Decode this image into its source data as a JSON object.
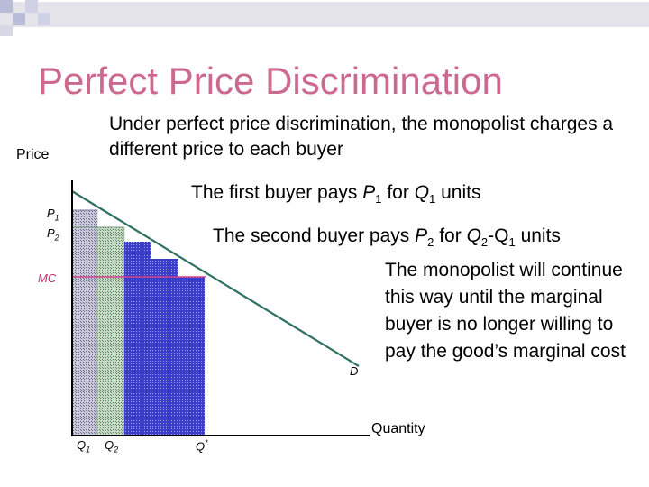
{
  "slide": {
    "title": "Perfect Price Discrimination",
    "subtitle": "Under perfect price discrimination, the monopolist charges a different price to each buyer",
    "annotation_1": {
      "prefix": "The first buyer pays ",
      "p": "P",
      "p_sub": "1",
      "mid": " for ",
      "q": "Q",
      "q_sub": "1",
      "suffix": " units"
    },
    "annotation_2": {
      "prefix": "The second buyer pays ",
      "p": "P",
      "p_sub": "2",
      "mid": " for ",
      "q2": "Q",
      "q2_sub": "2",
      "dash": "-",
      "q1": "Q",
      "q1_sub": "1",
      "suffix": " units"
    },
    "annotation_3": "The monopolist will continue this way until the marginal buyer is no longer willing to pay the good’s marginal cost"
  },
  "diagram": {
    "y_axis_label": "Price",
    "x_axis_label": "Quantity",
    "price_ticks": [
      {
        "main": "P",
        "sub": "1"
      },
      {
        "main": "P",
        "sub": "2"
      }
    ],
    "quantity_ticks": [
      {
        "main": "Q",
        "sub": "1"
      },
      {
        "main": "Q",
        "sub": "2"
      },
      {
        "main": "Q",
        "sup": "*"
      }
    ],
    "mc_label": "MC",
    "demand_label": "D",
    "colors": {
      "title": "#cc6a8e",
      "demand_line": "#2e7062",
      "mc_line": "#d0408a",
      "bar_first": "#9a9ab8",
      "bar_second": "#8aaa8a",
      "bar_rest": "#2b30c8"
    }
  }
}
